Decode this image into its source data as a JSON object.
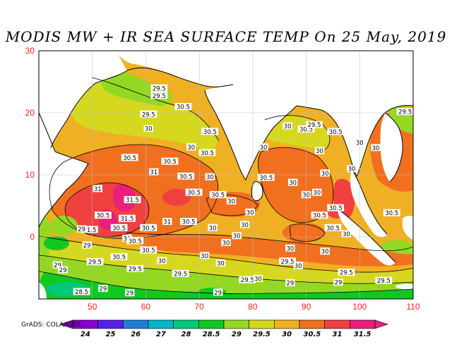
{
  "title": "MODIS MW + IR SEA SURFACE TEMP On 25 May, 2019",
  "credit": "GrADS: COLA/IGES",
  "map": {
    "lon_range": [
      40,
      110
    ],
    "lat_range": [
      -10,
      30
    ],
    "x_ticks": [
      "50",
      "60",
      "70",
      "80",
      "90",
      "100",
      "110"
    ],
    "y_ticks": [
      "30",
      "20",
      "10",
      "0"
    ],
    "tick_color": "#ff2020",
    "land_color": "#ffffff",
    "contour_labels": [
      {
        "text": "29.5",
        "lon": 62.5,
        "lat": 24.0
      },
      {
        "text": "29.5",
        "lon": 62.5,
        "lat": 22.8
      },
      {
        "text": "30.5",
        "lon": 67.0,
        "lat": 21.0
      },
      {
        "text": "29.5",
        "lon": 60.5,
        "lat": 19.8
      },
      {
        "text": "30",
        "lon": 60.5,
        "lat": 17.5
      },
      {
        "text": "30.5",
        "lon": 72.0,
        "lat": 17.0
      },
      {
        "text": "30",
        "lon": 68.5,
        "lat": 14.5
      },
      {
        "text": "30.5",
        "lon": 71.5,
        "lat": 13.6
      },
      {
        "text": "30.5",
        "lon": 57.0,
        "lat": 12.8
      },
      {
        "text": "30.5",
        "lon": 64.5,
        "lat": 12.2
      },
      {
        "text": "31",
        "lon": 61.5,
        "lat": 10.5
      },
      {
        "text": "30.5",
        "lon": 67.5,
        "lat": 9.8
      },
      {
        "text": "30.5",
        "lon": 69.0,
        "lat": 7.2
      },
      {
        "text": "30.5",
        "lon": 73.5,
        "lat": 6.8
      },
      {
        "text": "31",
        "lon": 51.0,
        "lat": 7.8
      },
      {
        "text": "31.5",
        "lon": 57.5,
        "lat": 6.0
      },
      {
        "text": "30.5",
        "lon": 52.0,
        "lat": 3.5
      },
      {
        "text": "31.5",
        "lon": 56.5,
        "lat": 3.0
      },
      {
        "text": "31",
        "lon": 64.0,
        "lat": 2.5
      },
      {
        "text": "30.5",
        "lon": 68.0,
        "lat": 2.5
      },
      {
        "text": "31.5",
        "lon": 49.5,
        "lat": 1.2
      },
      {
        "text": "30.5",
        "lon": 55.0,
        "lat": 1.5
      },
      {
        "text": "30.5",
        "lon": 60.5,
        "lat": 1.5
      },
      {
        "text": "31",
        "lon": 56.5,
        "lat": -0.2
      },
      {
        "text": "30.5",
        "lon": 58.0,
        "lat": -0.6
      },
      {
        "text": "30",
        "lon": 72.5,
        "lat": 1.5
      },
      {
        "text": "30",
        "lon": 79.5,
        "lat": 4.0
      },
      {
        "text": "30",
        "lon": 77.0,
        "lat": 0.2
      },
      {
        "text": "30",
        "lon": 78.5,
        "lat": 2.0
      },
      {
        "text": "30",
        "lon": 75.0,
        "lat": -0.9
      },
      {
        "text": "30.5",
        "lon": 60.5,
        "lat": -2.1
      },
      {
        "text": "29",
        "lon": 49.0,
        "lat": -1.3
      },
      {
        "text": "30.5",
        "lon": 55.0,
        "lat": -3.2
      },
      {
        "text": "29.5",
        "lon": 50.5,
        "lat": -4.0
      },
      {
        "text": "30",
        "lon": 63.0,
        "lat": -3.8
      },
      {
        "text": "29.5",
        "lon": 58.0,
        "lat": -5.1
      },
      {
        "text": "29",
        "lon": 43.5,
        "lat": -4.5
      },
      {
        "text": "29",
        "lon": 44.5,
        "lat": -5.3
      },
      {
        "text": "29.5",
        "lon": 66.5,
        "lat": -5.9
      },
      {
        "text": "28.5",
        "lon": 48.0,
        "lat": -8.8
      },
      {
        "text": "29",
        "lon": 52.0,
        "lat": -8.3
      },
      {
        "text": "29",
        "lon": 57.0,
        "lat": -9.0
      },
      {
        "text": "29",
        "lon": 73.5,
        "lat": -8.9
      },
      {
        "text": "29.5",
        "lon": 79.0,
        "lat": -6.9
      },
      {
        "text": "30",
        "lon": 81.0,
        "lat": -6.7
      },
      {
        "text": "29",
        "lon": 87.0,
        "lat": -7.4
      },
      {
        "text": "29",
        "lon": 96.0,
        "lat": -7.3
      },
      {
        "text": "29.5",
        "lon": 97.5,
        "lat": -5.7
      },
      {
        "text": "29.5",
        "lon": 104.5,
        "lat": -7.0
      },
      {
        "text": "30",
        "lon": 88.5,
        "lat": -4.6
      },
      {
        "text": "29.5",
        "lon": 86.5,
        "lat": -3.9
      },
      {
        "text": "30",
        "lon": 93.5,
        "lat": -2.3
      },
      {
        "text": "30",
        "lon": 87.0,
        "lat": -1.8
      },
      {
        "text": "30",
        "lon": 71.0,
        "lat": -3.0
      },
      {
        "text": "30",
        "lon": 74.0,
        "lat": -4.2
      },
      {
        "text": "30",
        "lon": 97.5,
        "lat": 0.5
      },
      {
        "text": "30.5",
        "lon": 95.0,
        "lat": 1.5
      },
      {
        "text": "30.5",
        "lon": 92.5,
        "lat": 3.5
      },
      {
        "text": "30.5",
        "lon": 95.5,
        "lat": 4.7
      },
      {
        "text": "30.5",
        "lon": 106.0,
        "lat": 3.9
      },
      {
        "text": "30",
        "lon": 92.0,
        "lat": 7.2
      },
      {
        "text": "30",
        "lon": 87.5,
        "lat": 8.8
      },
      {
        "text": "30",
        "lon": 90.0,
        "lat": 6.8
      },
      {
        "text": "30.5",
        "lon": 82.5,
        "lat": 9.6
      },
      {
        "text": "30",
        "lon": 93.5,
        "lat": 10.3
      },
      {
        "text": "30",
        "lon": 98.5,
        "lat": 11.0
      },
      {
        "text": "30",
        "lon": 82.0,
        "lat": 14.5
      },
      {
        "text": "30",
        "lon": 92.5,
        "lat": 13.9
      },
      {
        "text": "30.5",
        "lon": 90.0,
        "lat": 17.4
      },
      {
        "text": "29.5",
        "lon": 91.5,
        "lat": 18.1
      },
      {
        "text": "30",
        "lon": 100.0,
        "lat": 15.2
      },
      {
        "text": "30",
        "lon": 103.0,
        "lat": 14.4
      },
      {
        "text": "29.5",
        "lon": 108.5,
        "lat": 20.2
      },
      {
        "text": "30.5",
        "lon": 95.5,
        "lat": 17.0
      },
      {
        "text": "30",
        "lon": 86.5,
        "lat": 17.9
      },
      {
        "text": "30",
        "lon": 76.0,
        "lat": 5.8
      },
      {
        "text": "30",
        "lon": 72.0,
        "lat": 9.7
      },
      {
        "text": "29",
        "lon": 48.0,
        "lat": 1.3
      }
    ]
  },
  "colorbar": {
    "labels": [
      "24",
      "25",
      "26",
      "27",
      "28",
      "28.5",
      "29",
      "29.5",
      "30",
      "30.5",
      "31",
      "31.5"
    ],
    "colors": [
      "#8b00cf",
      "#5520e6",
      "#1f7fd8",
      "#00b6c8",
      "#00c878",
      "#10c820",
      "#94d824",
      "#d6d820",
      "#f0b024",
      "#f07020",
      "#f04040",
      "#e8207c"
    ]
  }
}
